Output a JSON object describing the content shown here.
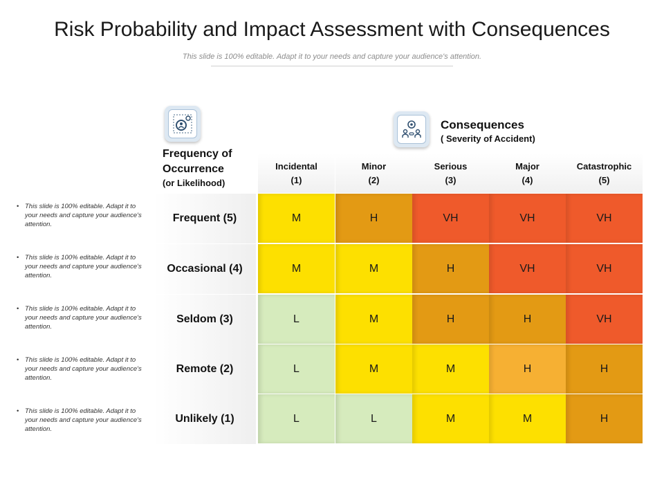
{
  "title": "Risk Probability and Impact Assessment with Consequences",
  "subtitle": "This slide is 100% editable. Adapt it to your needs and capture your audience's attention.",
  "frequency_header": {
    "line1": "Frequency of",
    "line2": "Occurrence",
    "line3": "(or Likelihood)"
  },
  "consequences_header": {
    "line1": "Consequences",
    "line2": "( Severity of Accident)"
  },
  "icons": {
    "frequency": "gear-person-icon",
    "consequences": "team-gear-icon"
  },
  "columns": [
    {
      "name": "Incidental",
      "num": "(1)"
    },
    {
      "name": "Minor",
      "num": "(2)"
    },
    {
      "name": "Serious",
      "num": "(3)"
    },
    {
      "name": "Major",
      "num": "(4)"
    },
    {
      "name": "Catastrophic",
      "num": "(5)"
    }
  ],
  "rows": [
    {
      "label": "Frequent (5)",
      "note": "This slide is 100% editable. Adapt it to your needs and capture your audience's attention.",
      "values": [
        "M",
        "H",
        "VH",
        "VH",
        "VH"
      ]
    },
    {
      "label": "Occasional (4)",
      "note": "This slide is 100% editable. Adapt it to your needs and capture your audience's attention.",
      "values": [
        "M",
        "M",
        "H",
        "VH",
        "VH"
      ]
    },
    {
      "label": "Seldom (3)",
      "note": "This slide is 100% editable. Adapt it to your needs and capture your audience's attention.",
      "values": [
        "L",
        "M",
        "H",
        "H",
        "VH"
      ]
    },
    {
      "label": "Remote (2)",
      "note": "This slide is 100% editable. Adapt it to your needs and capture your audience's attention.",
      "values": [
        "L",
        "M",
        "M",
        "H",
        "H"
      ]
    },
    {
      "label": "Unlikely (1)",
      "note": "This slide is 100% editable. Adapt it to your needs and capture your audience's attention.",
      "values": [
        "L",
        "L",
        "M",
        "M",
        "H"
      ]
    }
  ],
  "cell_colors": [
    [
      "#fde000",
      "#e39a14",
      "#ef5a2b",
      "#ef5a2b",
      "#ef5a2b"
    ],
    [
      "#fde000",
      "#fde000",
      "#e39a14",
      "#ef5a2b",
      "#ef5a2b"
    ],
    [
      "#d6ebbd",
      "#fde000",
      "#e39a14",
      "#e39a14",
      "#ef5a2b"
    ],
    [
      "#d6ebbd",
      "#fde000",
      "#fde000",
      "#f6b033",
      "#e39a14"
    ],
    [
      "#d6ebbd",
      "#d6ebbd",
      "#fde000",
      "#fde000",
      "#e39a14"
    ]
  ]
}
